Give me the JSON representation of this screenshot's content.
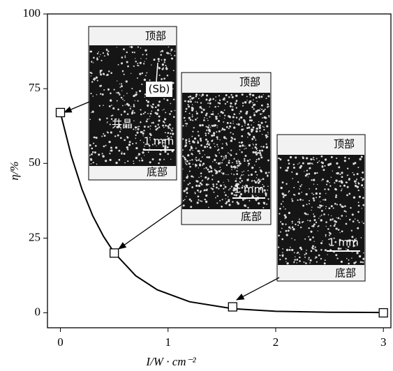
{
  "chart_data": {
    "type": "scatter",
    "x_label": "I/W · cm⁻²",
    "y_label": "η/%",
    "xlim": [
      -0.12,
      3.07
    ],
    "ylim": [
      -5,
      100
    ],
    "xticks": [
      0,
      1,
      2,
      3
    ],
    "yticks": [
      0,
      25,
      50,
      75,
      100
    ],
    "series": [
      {
        "x": [
          0,
          0.5,
          1.6,
          3
        ],
        "values": [
          67,
          20,
          2,
          0
        ],
        "color": "#000000"
      }
    ],
    "fit": {
      "x": [
        0,
        0.1,
        0.2,
        0.3,
        0.4,
        0.5,
        0.7,
        0.9,
        1.2,
        1.6,
        2,
        2.5,
        3
      ],
      "values": [
        67,
        52.7,
        41.4,
        32.5,
        25.6,
        20.1,
        12.4,
        7.7,
        3.7,
        1.4,
        0.5,
        0.2,
        0.1
      ],
      "color": "#000000"
    },
    "insets": [
      {
        "top_label": "顶部",
        "bottom_label": "底部",
        "scale_label": "1 mm",
        "annotations": [
          "(Sb)",
          "共晶"
        ]
      },
      {
        "top_label": "顶部",
        "bottom_label": "底部",
        "scale_label": "1 mm"
      },
      {
        "top_label": "顶部",
        "bottom_label": "底部",
        "scale_label": "1 mm"
      }
    ]
  }
}
